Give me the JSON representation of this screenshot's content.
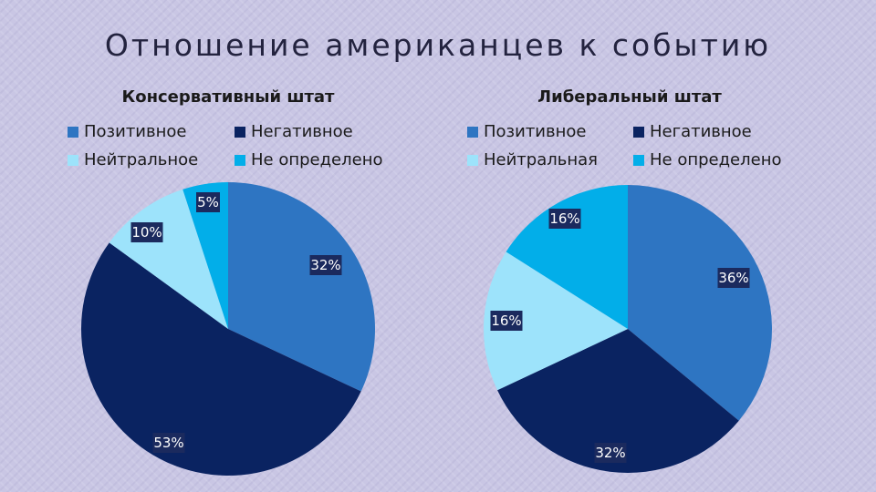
{
  "title": "Отношение американцев к событию",
  "chart_data": [
    {
      "type": "pie",
      "title": "Консервативный штат",
      "categories": [
        "Позитивное",
        "Негативное",
        "Нейтральное",
        "Не определено"
      ],
      "values": [
        32,
        53,
        10,
        5
      ],
      "labels": [
        "32%",
        "53%",
        "10%",
        "5%"
      ],
      "colors": [
        "#2e75c2",
        "#0a2361",
        "#9de3fb",
        "#02aee9"
      ],
      "legend": "top"
    },
    {
      "type": "pie",
      "title": "Либеральный штат",
      "categories": [
        "Позитивное",
        "Негативное",
        "Нейтральная",
        "Не определено"
      ],
      "values": [
        36,
        32,
        16,
        16
      ],
      "labels": [
        "36%",
        "32%",
        "16%",
        "16%"
      ],
      "colors": [
        "#2e75c2",
        "#0a2361",
        "#9de3fb",
        "#02aee9"
      ],
      "legend": "top"
    }
  ]
}
